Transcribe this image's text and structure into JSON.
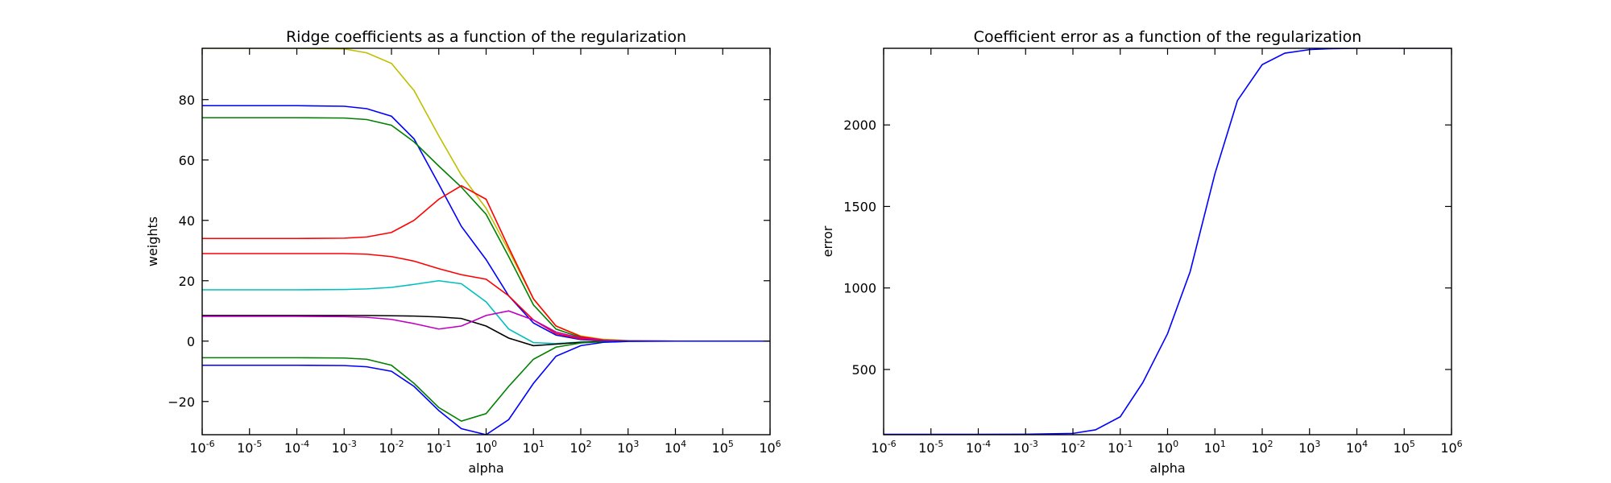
{
  "chart_data": [
    {
      "type": "line",
      "title": "Ridge coefficients as a function of the regularization",
      "xlabel": "alpha",
      "ylabel": "weights",
      "xscale": "log",
      "xlim": [
        1e-06,
        1000000.0
      ],
      "ylim": [
        -31,
        97
      ],
      "xtick_base": "10",
      "xticks": [
        {
          "exp": "-6",
          "value": 1e-06
        },
        {
          "exp": "-5",
          "value": 1e-05
        },
        {
          "exp": "-4",
          "value": 0.0001
        },
        {
          "exp": "-3",
          "value": 0.001
        },
        {
          "exp": "-2",
          "value": 0.01
        },
        {
          "exp": "-1",
          "value": 0.1
        },
        {
          "exp": "0",
          "value": 1
        },
        {
          "exp": "1",
          "value": 10
        },
        {
          "exp": "2",
          "value": 100
        },
        {
          "exp": "3",
          "value": 1000
        },
        {
          "exp": "4",
          "value": 10000
        },
        {
          "exp": "5",
          "value": 100000
        },
        {
          "exp": "6",
          "value": 1000000
        }
      ],
      "yticks": [
        {
          "label": "−20",
          "value": -20
        },
        {
          "label": "0",
          "value": 0
        },
        {
          "label": "20",
          "value": 20
        },
        {
          "label": "40",
          "value": 40
        },
        {
          "label": "60",
          "value": 60
        },
        {
          "label": "80",
          "value": 80
        }
      ],
      "grid": false,
      "series": [
        {
          "color": "#bfbf00",
          "x": [
            1e-06,
            0.0001,
            0.001,
            0.003,
            0.01,
            0.03,
            0.1,
            0.3,
            1,
            3,
            10,
            30,
            100,
            300,
            1000,
            10000.0,
            1000000.0
          ],
          "y": [
            97,
            97,
            96.8,
            95.5,
            92,
            83,
            68,
            55,
            44,
            30,
            14,
            5,
            1.7,
            0.6,
            0.2,
            0,
            0
          ]
        },
        {
          "color": "#0000ff",
          "x": [
            1e-06,
            0.0001,
            0.001,
            0.003,
            0.01,
            0.03,
            0.1,
            0.3,
            1,
            3,
            10,
            30,
            100,
            300,
            1000,
            10000.0,
            1000000.0
          ],
          "y": [
            78,
            78,
            77.8,
            77,
            74.5,
            67,
            52,
            38,
            27,
            15,
            6,
            2,
            0.5,
            0.1,
            0,
            0,
            0
          ]
        },
        {
          "color": "#008000",
          "x": [
            1e-06,
            0.0001,
            0.001,
            0.003,
            0.01,
            0.03,
            0.1,
            0.3,
            1,
            3,
            10,
            30,
            100,
            300,
            1000,
            10000.0,
            1000000.0
          ],
          "y": [
            74,
            74,
            73.9,
            73.4,
            71.5,
            66,
            58,
            51,
            42,
            28,
            12,
            4,
            1.2,
            0.3,
            0,
            0,
            0
          ]
        },
        {
          "color": "#ff0000",
          "x": [
            1e-06,
            0.0001,
            0.001,
            0.003,
            0.01,
            0.03,
            0.1,
            0.3,
            1,
            3,
            10,
            30,
            100,
            300,
            1000,
            10000.0,
            1000000.0
          ],
          "y": [
            34,
            34,
            34.1,
            34.5,
            36,
            40,
            47,
            51.5,
            47,
            31,
            14,
            5,
            1.5,
            0.4,
            0.1,
            0,
            0
          ]
        },
        {
          "color": "#ff0000",
          "x": [
            1e-06,
            0.0001,
            0.001,
            0.003,
            0.01,
            0.03,
            0.1,
            0.3,
            1,
            3,
            10,
            30,
            100,
            300,
            1000,
            10000.0,
            1000000.0
          ],
          "y": [
            29,
            29,
            29,
            28.8,
            28,
            26.5,
            24,
            22,
            20.5,
            15,
            7,
            2.5,
            0.7,
            0.2,
            0,
            0,
            0
          ]
        },
        {
          "color": "#00bfbf",
          "x": [
            1e-06,
            0.0001,
            0.001,
            0.003,
            0.01,
            0.03,
            0.1,
            0.3,
            1,
            3,
            10,
            30,
            100,
            300,
            1000,
            10000.0,
            1000000.0
          ],
          "y": [
            17,
            17,
            17.1,
            17.3,
            17.8,
            18.8,
            20,
            19,
            13,
            4,
            -0.5,
            -0.8,
            -0.3,
            -0.1,
            0,
            0,
            0
          ]
        },
        {
          "color": "#000000",
          "x": [
            1e-06,
            0.0001,
            0.001,
            0.003,
            0.01,
            0.03,
            0.1,
            0.3,
            1,
            3,
            10,
            30,
            100,
            300,
            1000,
            10000.0,
            1000000.0
          ],
          "y": [
            8.5,
            8.5,
            8.5,
            8.5,
            8.4,
            8.3,
            8,
            7.5,
            5,
            1,
            -1.5,
            -1,
            -0.4,
            -0.1,
            0,
            0,
            0
          ]
        },
        {
          "color": "#bf00bf",
          "x": [
            1e-06,
            0.0001,
            0.001,
            0.003,
            0.01,
            0.03,
            0.1,
            0.3,
            1,
            3,
            10,
            30,
            100,
            300,
            1000,
            10000.0,
            1000000.0
          ],
          "y": [
            8.2,
            8.2,
            8.1,
            7.9,
            7.2,
            5.8,
            4,
            5,
            8.5,
            10,
            7,
            3,
            1,
            0.3,
            0.1,
            0,
            0
          ]
        },
        {
          "color": "#008000",
          "x": [
            1e-06,
            0.0001,
            0.001,
            0.003,
            0.01,
            0.03,
            0.1,
            0.3,
            1,
            3,
            10,
            30,
            100,
            300,
            1000,
            10000.0,
            1000000.0
          ],
          "y": [
            -5.5,
            -5.5,
            -5.6,
            -6,
            -8,
            -14,
            -22,
            -26.5,
            -24,
            -15,
            -6,
            -2,
            -0.6,
            -0.2,
            0,
            0,
            0
          ]
        },
        {
          "color": "#0000ff",
          "x": [
            1e-06,
            0.0001,
            0.001,
            0.003,
            0.01,
            0.03,
            0.1,
            0.3,
            1,
            3,
            10,
            30,
            100,
            300,
            1000,
            10000.0,
            1000000.0
          ],
          "y": [
            -8,
            -8,
            -8.1,
            -8.5,
            -10,
            -15,
            -23,
            -29,
            -31,
            -26,
            -14,
            -5,
            -1.5,
            -0.4,
            -0.1,
            0,
            0
          ]
        }
      ]
    },
    {
      "type": "line",
      "title": "Coefficient error as a function of the regularization",
      "xlabel": "alpha",
      "ylabel": "error",
      "xscale": "log",
      "xlim": [
        1e-06,
        1000000.0
      ],
      "ylim": [
        100,
        2470
      ],
      "xtick_base": "10",
      "xticks": [
        {
          "exp": "-6",
          "value": 1e-06
        },
        {
          "exp": "-5",
          "value": 1e-05
        },
        {
          "exp": "-4",
          "value": 0.0001
        },
        {
          "exp": "-3",
          "value": 0.001
        },
        {
          "exp": "-2",
          "value": 0.01
        },
        {
          "exp": "-1",
          "value": 0.1
        },
        {
          "exp": "0",
          "value": 1
        },
        {
          "exp": "1",
          "value": 10
        },
        {
          "exp": "2",
          "value": 100
        },
        {
          "exp": "3",
          "value": 1000
        },
        {
          "exp": "4",
          "value": 10000
        },
        {
          "exp": "5",
          "value": 100000
        },
        {
          "exp": "6",
          "value": 1000000
        }
      ],
      "yticks": [
        {
          "label": "500",
          "value": 500
        },
        {
          "label": "1000",
          "value": 1000
        },
        {
          "label": "1500",
          "value": 1500
        },
        {
          "label": "2000",
          "value": 2000
        }
      ],
      "grid": false,
      "series": [
        {
          "color": "#0000ff",
          "x": [
            1e-06,
            0.0001,
            0.001,
            0.01,
            0.03,
            0.1,
            0.3,
            1,
            3,
            10,
            30,
            100,
            300,
            1000,
            3000,
            10000.0,
            1000000.0
          ],
          "y": [
            102,
            102,
            103,
            108,
            130,
            210,
            420,
            720,
            1100,
            1700,
            2150,
            2370,
            2440,
            2462,
            2468,
            2470,
            2470
          ]
        }
      ]
    }
  ]
}
